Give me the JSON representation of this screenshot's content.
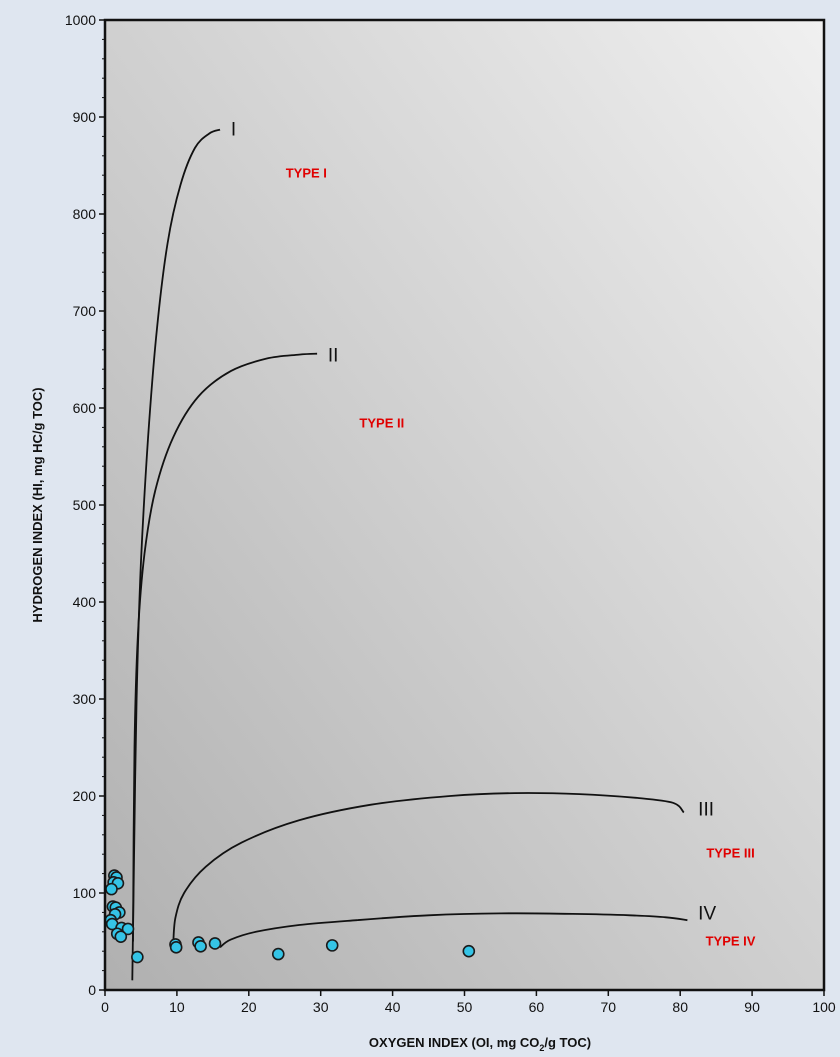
{
  "chart_data": {
    "type": "scatter",
    "xlabel": "OXYGEN INDEX (OI, mg CO",
    "xlabel_sub": "2",
    "xlabel_tail": "/g TOC)",
    "ylabel": "HYDROGEN INDEX (HI, mg HC/g TOC)",
    "xlim": [
      0,
      100
    ],
    "ylim": [
      0,
      1000
    ],
    "xticks": [
      0,
      10,
      20,
      30,
      40,
      50,
      60,
      70,
      80,
      90,
      100
    ],
    "yticks": [
      0,
      100,
      200,
      300,
      400,
      500,
      600,
      700,
      800,
      900,
      1000
    ],
    "grid": false,
    "colors": {
      "page": "#dfe6f0",
      "plot_bg_light": "#f0f0f0",
      "plot_bg_dark": "#b0b0b0",
      "point_fill": "#35c4e6",
      "point_stroke": "#1a1a1a",
      "curve": "#111111",
      "type_label": "#e00000"
    },
    "points": [
      {
        "x": 1.3,
        "y": 118
      },
      {
        "x": 1.6,
        "y": 116
      },
      {
        "x": 1.2,
        "y": 111
      },
      {
        "x": 1.8,
        "y": 110
      },
      {
        "x": 0.9,
        "y": 104
      },
      {
        "x": 1.1,
        "y": 86
      },
      {
        "x": 1.5,
        "y": 85
      },
      {
        "x": 2.0,
        "y": 80
      },
      {
        "x": 1.4,
        "y": 78
      },
      {
        "x": 0.8,
        "y": 72
      },
      {
        "x": 1.0,
        "y": 68
      },
      {
        "x": 2.3,
        "y": 64
      },
      {
        "x": 3.2,
        "y": 63
      },
      {
        "x": 1.7,
        "y": 58
      },
      {
        "x": 2.2,
        "y": 55
      },
      {
        "x": 4.5,
        "y": 34
      },
      {
        "x": 9.8,
        "y": 47
      },
      {
        "x": 9.9,
        "y": 44
      },
      {
        "x": 13.0,
        "y": 49
      },
      {
        "x": 13.3,
        "y": 45
      },
      {
        "x": 15.3,
        "y": 48
      },
      {
        "x": 24.1,
        "y": 37
      },
      {
        "x": 31.6,
        "y": 46
      },
      {
        "x": 50.6,
        "y": 40
      }
    ],
    "curves": [
      {
        "label": "I",
        "label_at": {
          "x": 17.5,
          "y": 888
        },
        "points": [
          {
            "x": 3.8,
            "y": 10
          },
          {
            "x": 4.0,
            "y": 120
          },
          {
            "x": 4.4,
            "y": 300
          },
          {
            "x": 5.0,
            "y": 440
          },
          {
            "x": 6.0,
            "y": 570
          },
          {
            "x": 7.2,
            "y": 680
          },
          {
            "x": 8.7,
            "y": 770
          },
          {
            "x": 10.5,
            "y": 830
          },
          {
            "x": 12.5,
            "y": 868
          },
          {
            "x": 14.5,
            "y": 883
          },
          {
            "x": 16.0,
            "y": 887
          }
        ]
      },
      {
        "label": "II",
        "label_at": {
          "x": 31,
          "y": 655
        },
        "points": [
          {
            "x": 3.9,
            "y": 50
          },
          {
            "x": 4.1,
            "y": 250
          },
          {
            "x": 4.6,
            "y": 370
          },
          {
            "x": 5.5,
            "y": 450
          },
          {
            "x": 7.0,
            "y": 515
          },
          {
            "x": 9.5,
            "y": 570
          },
          {
            "x": 13.0,
            "y": 612
          },
          {
            "x": 17.5,
            "y": 638
          },
          {
            "x": 22.5,
            "y": 651
          },
          {
            "x": 27.0,
            "y": 655
          },
          {
            "x": 29.5,
            "y": 656
          }
        ]
      },
      {
        "label": "III",
        "label_at": {
          "x": 82.5,
          "y": 187
        },
        "points": [
          {
            "x": 9.5,
            "y": 50
          },
          {
            "x": 9.8,
            "y": 75
          },
          {
            "x": 11.0,
            "y": 100
          },
          {
            "x": 14.0,
            "y": 127
          },
          {
            "x": 19.0,
            "y": 152
          },
          {
            "x": 27.0,
            "y": 175
          },
          {
            "x": 37.0,
            "y": 191
          },
          {
            "x": 48.0,
            "y": 200
          },
          {
            "x": 57.0,
            "y": 203
          },
          {
            "x": 66.0,
            "y": 202
          },
          {
            "x": 74.0,
            "y": 198
          },
          {
            "x": 79.0,
            "y": 193
          },
          {
            "x": 80.5,
            "y": 183
          }
        ]
      },
      {
        "label": "IV",
        "label_at": {
          "x": 82.5,
          "y": 80
        },
        "points": [
          {
            "x": 16.0,
            "y": 44
          },
          {
            "x": 17.5,
            "y": 52
          },
          {
            "x": 21.0,
            "y": 60
          },
          {
            "x": 27.0,
            "y": 67
          },
          {
            "x": 35.0,
            "y": 72
          },
          {
            "x": 45.0,
            "y": 77
          },
          {
            "x": 55.0,
            "y": 79
          },
          {
            "x": 65.0,
            "y": 78.5
          },
          {
            "x": 73.0,
            "y": 77
          },
          {
            "x": 78.0,
            "y": 75
          },
          {
            "x": 81.0,
            "y": 72
          }
        ]
      }
    ],
    "annotations": [
      {
        "text": "TYPE I",
        "x": 28,
        "y": 843
      },
      {
        "text": "TYPE II",
        "x": 38.5,
        "y": 585
      },
      {
        "text": "TYPE III",
        "x": 87,
        "y": 142
      },
      {
        "text": "TYPE IV",
        "x": 87,
        "y": 51
      }
    ]
  }
}
